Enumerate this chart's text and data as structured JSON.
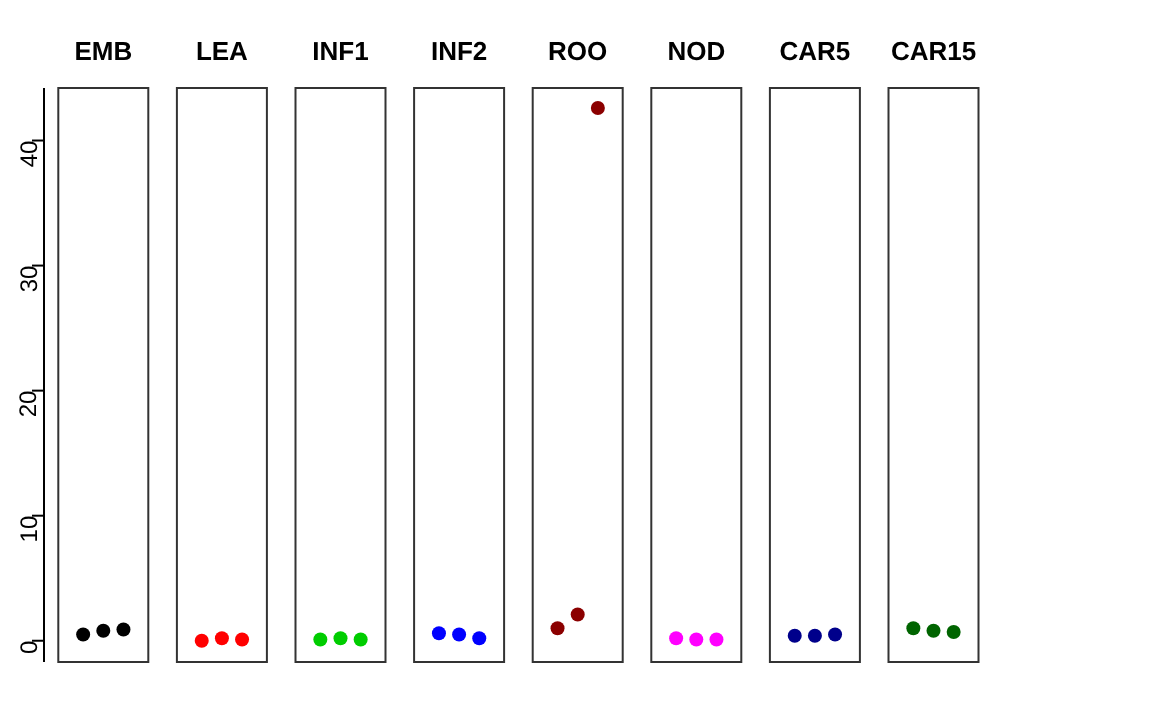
{
  "chart_data": {
    "type": "scatter",
    "categories": [
      "EMB",
      "LEA",
      "INF1",
      "INF2",
      "ROO",
      "NOD",
      "CAR5",
      "CAR15"
    ],
    "series": [
      {
        "values": [
          0.5,
          0.0,
          0.1,
          0.6,
          1.0,
          0.2,
          0.4,
          1.0
        ],
        "colors": [
          "#000000",
          "#ff0000",
          "#00cd00",
          "#0000ff",
          "#8b0000",
          "#ff00ff",
          "#00008b",
          "#006400"
        ]
      },
      {
        "values": [
          0.8,
          0.2,
          0.2,
          0.5,
          2.1,
          0.1,
          0.4,
          0.8
        ],
        "colors": [
          "#000000",
          "#ff0000",
          "#00cd00",
          "#0000ff",
          "#8b0000",
          "#ff00ff",
          "#00008b",
          "#006400"
        ]
      },
      {
        "values": [
          0.9,
          0.1,
          0.1,
          0.2,
          42.6,
          0.1,
          0.5,
          0.7
        ],
        "colors": [
          "#000000",
          "#ff0000",
          "#00cd00",
          "#0000ff",
          "#8b0000",
          "#ff00ff",
          "#00008b",
          "#006400"
        ]
      }
    ],
    "ylim": [
      -1.7,
      44.2
    ],
    "yticks": [
      0,
      10,
      20,
      30,
      40
    ],
    "marker": "circle"
  }
}
